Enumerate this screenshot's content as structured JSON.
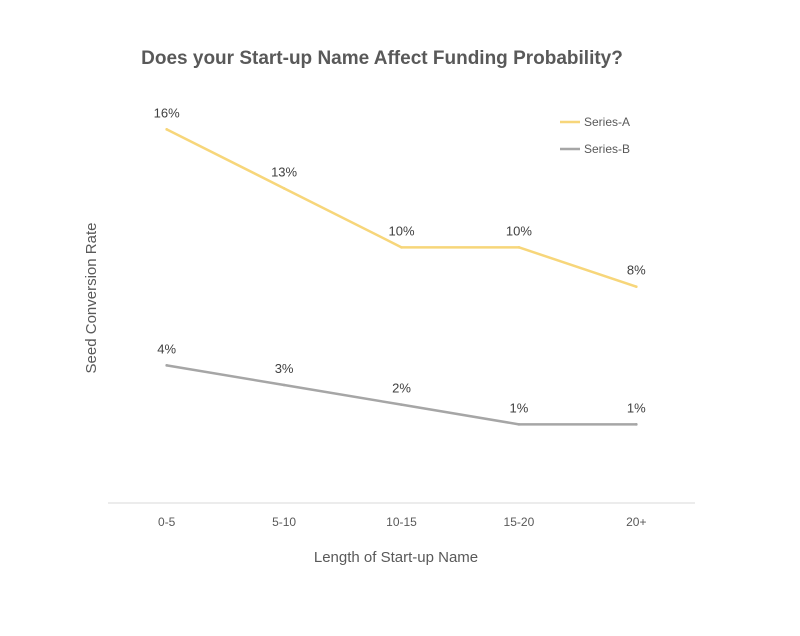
{
  "chart_data": {
    "type": "line",
    "title": "Does your Start-up Name Affect Funding Probability?",
    "xlabel": "Length of Start-up Name",
    "ylabel": "Seed Conversion Rate",
    "categories": [
      "0-5",
      "5-10",
      "10-15",
      "15-20",
      "20+"
    ],
    "ylim": [
      -3,
      18
    ],
    "grid": false,
    "legend_position": "top-right",
    "series": [
      {
        "name": "Series-A",
        "color": "#F7D67A",
        "values": [
          16,
          13,
          10,
          10,
          8
        ],
        "labels": [
          "16%",
          "13%",
          "10%",
          "10%",
          "8%"
        ]
      },
      {
        "name": "Series-B",
        "color": "#A6A6A6",
        "values": [
          4,
          3,
          2,
          1,
          1
        ],
        "labels": [
          "4%",
          "3%",
          "2%",
          "1%",
          "1%"
        ]
      }
    ]
  }
}
